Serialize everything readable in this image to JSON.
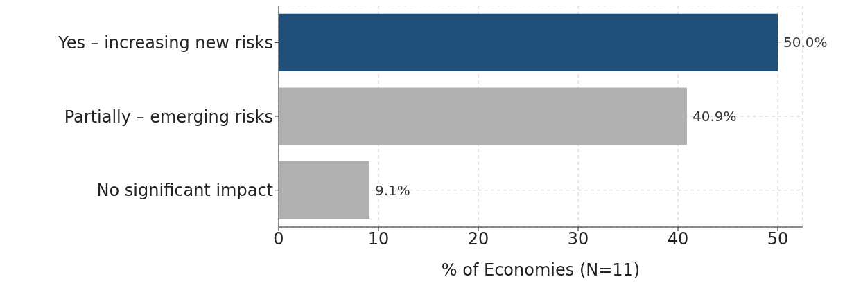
{
  "chart_data": {
    "type": "bar",
    "orientation": "horizontal",
    "categories": [
      "Yes – increasing new risks",
      "Partially – emerging risks",
      "No significant impact"
    ],
    "values": [
      50.0,
      40.9,
      9.1
    ],
    "colors": [
      "#1f4e79",
      "#b0b0b0",
      "#b0b0b0"
    ],
    "value_labels": [
      "50.0%",
      "40.9%",
      "9.1%"
    ],
    "xlim": [
      0,
      52.5
    ],
    "xticks": [
      0,
      10,
      20,
      30,
      40,
      50
    ],
    "xlabel": "% of Economies (N=11)",
    "grid": true
  }
}
